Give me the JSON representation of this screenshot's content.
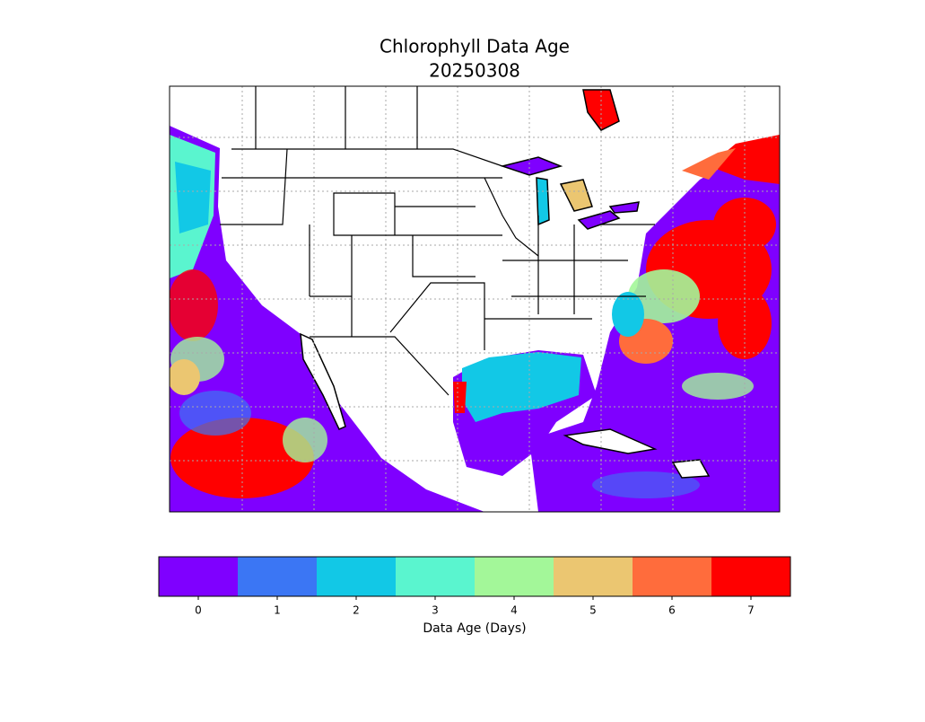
{
  "title": [
    "Chlorophyll Data Age",
    "20250308"
  ],
  "colorbar": {
    "label": "Data Age (Days)",
    "lim": [
      -0.5,
      7.5
    ],
    "ticks": [
      0,
      1,
      2,
      3,
      4,
      5,
      6,
      7
    ],
    "colors": [
      "#7f00ff",
      "#3b76f4",
      "#12c8e6",
      "#5af5cf",
      "#a3f799",
      "#ebc671",
      "#ff6c3c",
      "#ff0000"
    ]
  }
}
